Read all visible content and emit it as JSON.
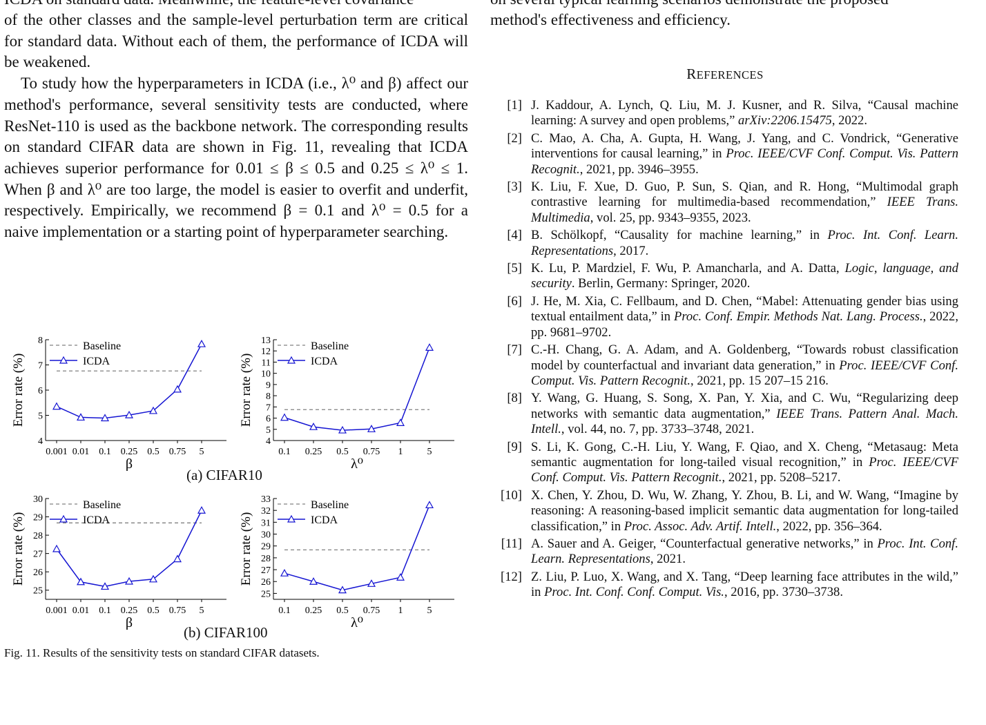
{
  "left": {
    "cut_line": "ICDA on standard data. Meanwhile, the feature-level covariance",
    "para1_lines": "of the other classes and the sample-level perturbation term are critical for standard data. Without each of them, the performance of ICDA will be weakened.",
    "para2": "To study how the hyperparameters in ICDA (i.e., λ⁰ and β) affect our method's performance, several sensitivity tests are conducted, where ResNet-110 is used as the backbone network. The corresponding results on standard CIFAR data are shown in Fig. 11, revealing that ICDA achieves superior performance for 0.01 ≤ β ≤ 0.5 and 0.25 ≤ λ⁰ ≤ 1. When β and λ⁰ are too large, the model is easier to overfit and underfit, respectively. Empirically, we recommend β = 0.1 and λ⁰ = 0.5 for a naive implementation or a starting point of hyperparameter searching."
  },
  "right": {
    "cut_line": "on several typical learning scenarios demonstrate the proposed",
    "tail_line": "method's effectiveness and efficiency.",
    "references_title_big": "R",
    "references_title_rest": "EFERENCES"
  },
  "references": [
    {
      "num": "[1]",
      "plain": "J. Kaddour, A. Lynch, Q. Liu, M. J. Kusner, and R. Silva, “Causal machine learning: A survey and open problems,” ",
      "ital": "arXiv:2206.15475",
      "tail": ", 2022."
    },
    {
      "num": "[2]",
      "plain": "C. Mao, A. Cha, A. Gupta, H. Wang, J. Yang, and C. Vondrick, “Generative interventions for causal learning,” in ",
      "ital": "Proc. IEEE/CVF Conf. Comput. Vis. Pattern Recognit.",
      "tail": ", 2021, pp. 3946–3955."
    },
    {
      "num": "[3]",
      "plain": "K. Liu, F. Xue, D. Guo, P. Sun, S. Qian, and R. Hong, “Multimodal graph contrastive learning for multimedia-based recommendation,” ",
      "ital": "IEEE Trans. Multimedia",
      "tail": ", vol. 25, pp. 9343–9355, 2023."
    },
    {
      "num": "[4]",
      "plain": "B. Schölkopf, “Causality for machine learning,” in ",
      "ital": "Proc. Int. Conf. Learn. Representations",
      "tail": ", 2017."
    },
    {
      "num": "[5]",
      "plain": "K. Lu, P. Mardziel, F. Wu, P. Amancharla, and A. Datta, ",
      "ital": "Logic, language, and security",
      "tail": ".   Berlin, Germany: Springer, 2020."
    },
    {
      "num": "[6]",
      "plain": "J. He, M. Xia, C. Fellbaum, and D. Chen, “Mabel: Attenuating gender bias using textual entailment data,” in ",
      "ital": "Proc. Conf. Empir. Methods Nat. Lang. Process.",
      "tail": ", 2022, pp. 9681–9702."
    },
    {
      "num": "[7]",
      "plain": "C.-H. Chang, G. A. Adam, and A. Goldenberg, “Towards robust classification model by counterfactual and invariant data generation,” in ",
      "ital": "Proc. IEEE/CVF Conf. Comput. Vis. Pattern Recognit.",
      "tail": ", 2021, pp. 15 207–15 216."
    },
    {
      "num": "[8]",
      "plain": "Y. Wang, G. Huang, S. Song, X. Pan, Y. Xia, and C. Wu, “Regularizing deep networks with semantic data augmentation,” ",
      "ital": "IEEE Trans. Pattern Anal. Mach. Intell.",
      "tail": ", vol. 44, no. 7, pp. 3733–3748, 2021."
    },
    {
      "num": "[9]",
      "plain": "S. Li, K. Gong, C.-H. Liu, Y. Wang, F. Qiao, and X. Cheng, “Metasaug: Meta semantic augmentation for long-tailed visual recognition,” in ",
      "ital": "Proc. IEEE/CVF Conf. Comput. Vis. Pattern Recognit.",
      "tail": ", 2021, pp. 5208–5217."
    },
    {
      "num": "[10]",
      "plain": "X. Chen, Y. Zhou, D. Wu, W. Zhang, Y. Zhou, B. Li, and W. Wang, “Imagine by reasoning: A reasoning-based implicit semantic data augmentation for long-tailed classification,” in ",
      "ital": "Proc. Assoc. Adv. Artif. Intell.",
      "tail": ", 2022, pp. 356–364."
    },
    {
      "num": "[11]",
      "plain": "A. Sauer and A. Geiger, “Counterfactual generative networks,” in ",
      "ital": "Proc. Int. Conf. Learn. Representations",
      "tail": ", 2021."
    },
    {
      "num": "[12]",
      "plain": "Z. Liu, P. Luo, X. Wang, and X. Tang, “Deep learning face attributes in the wild,” in ",
      "ital": "Proc. Int. Conf. Conf. Comput. Vis.",
      "tail": ", 2016, pp. 3730–3738."
    }
  ],
  "figure": {
    "caption": "Fig. 11.  Results of the sensitivity tests on standard CIFAR datasets.",
    "subcaption_a": "(a) CIFAR10",
    "subcaption_b": "(b) CIFAR100"
  },
  "chart_data": [
    {
      "type": "line",
      "xlabel": "β",
      "ylabel": "Error rate (%)",
      "categories": [
        "0.001",
        "0.01",
        "0.1",
        "0.25",
        "0.5",
        "0.75",
        "5"
      ],
      "ylim": [
        4,
        8
      ],
      "yticks": [
        4,
        5,
        6,
        7,
        8
      ],
      "legend": "top-left",
      "series": [
        {
          "name": "Baseline",
          "style": "dashed",
          "color": "#808080",
          "values": [
            6.76,
            6.76,
            6.76,
            6.76,
            6.76,
            6.76,
            6.76
          ]
        },
        {
          "name": "ICDA",
          "style": "solid-triangle",
          "color": "#1414d2",
          "values": [
            5.35,
            4.92,
            4.89,
            5.01,
            5.18,
            6.03,
            7.83
          ]
        }
      ]
    },
    {
      "type": "line",
      "xlabel": "λ⁰",
      "ylabel": "Error rate (%)",
      "categories": [
        "0.1",
        "0.25",
        "0.5",
        "0.75",
        "1",
        "5"
      ],
      "ylim": [
        4,
        13
      ],
      "yticks": [
        4,
        5,
        6,
        7,
        8,
        9,
        10,
        11,
        12,
        13
      ],
      "legend": "top-left",
      "series": [
        {
          "name": "Baseline",
          "style": "dashed",
          "color": "#808080",
          "values": [
            6.76,
            6.76,
            6.76,
            6.76,
            6.76,
            6.76
          ]
        },
        {
          "name": "ICDA",
          "style": "solid-triangle",
          "color": "#1414d2",
          "values": [
            6.05,
            5.22,
            4.92,
            5.03,
            5.58,
            12.3
          ]
        }
      ]
    },
    {
      "type": "line",
      "xlabel": "β",
      "ylabel": "Error rate (%)",
      "categories": [
        "0.001",
        "0.01",
        "0.1",
        "0.25",
        "0.5",
        "0.75",
        "5"
      ],
      "ylim": [
        24.5,
        30
      ],
      "yticks": [
        25,
        26,
        27,
        28,
        29,
        30
      ],
      "legend": "top-left",
      "series": [
        {
          "name": "Baseline",
          "style": "dashed",
          "color": "#808080",
          "values": [
            28.67,
            28.67,
            28.67,
            28.67,
            28.67,
            28.67,
            28.67
          ]
        },
        {
          "name": "ICDA",
          "style": "solid-triangle",
          "color": "#1414d2",
          "values": [
            27.25,
            25.45,
            25.2,
            25.48,
            25.6,
            26.7,
            29.35
          ]
        }
      ]
    },
    {
      "type": "line",
      "xlabel": "λ⁰",
      "ylabel": "Error rate (%)",
      "categories": [
        "0.1",
        "0.25",
        "0.5",
        "0.75",
        "1",
        "5"
      ],
      "ylim": [
        24.5,
        33
      ],
      "yticks": [
        25,
        26,
        27,
        28,
        29,
        30,
        31,
        32,
        33
      ],
      "legend": "top-left",
      "series": [
        {
          "name": "Baseline",
          "style": "dashed",
          "color": "#808080",
          "values": [
            28.67,
            28.67,
            28.67,
            28.67,
            28.67,
            28.67
          ]
        },
        {
          "name": "ICDA",
          "style": "solid-triangle",
          "color": "#1414d2",
          "values": [
            26.7,
            26.0,
            25.28,
            25.82,
            26.35,
            32.45
          ]
        }
      ]
    }
  ]
}
